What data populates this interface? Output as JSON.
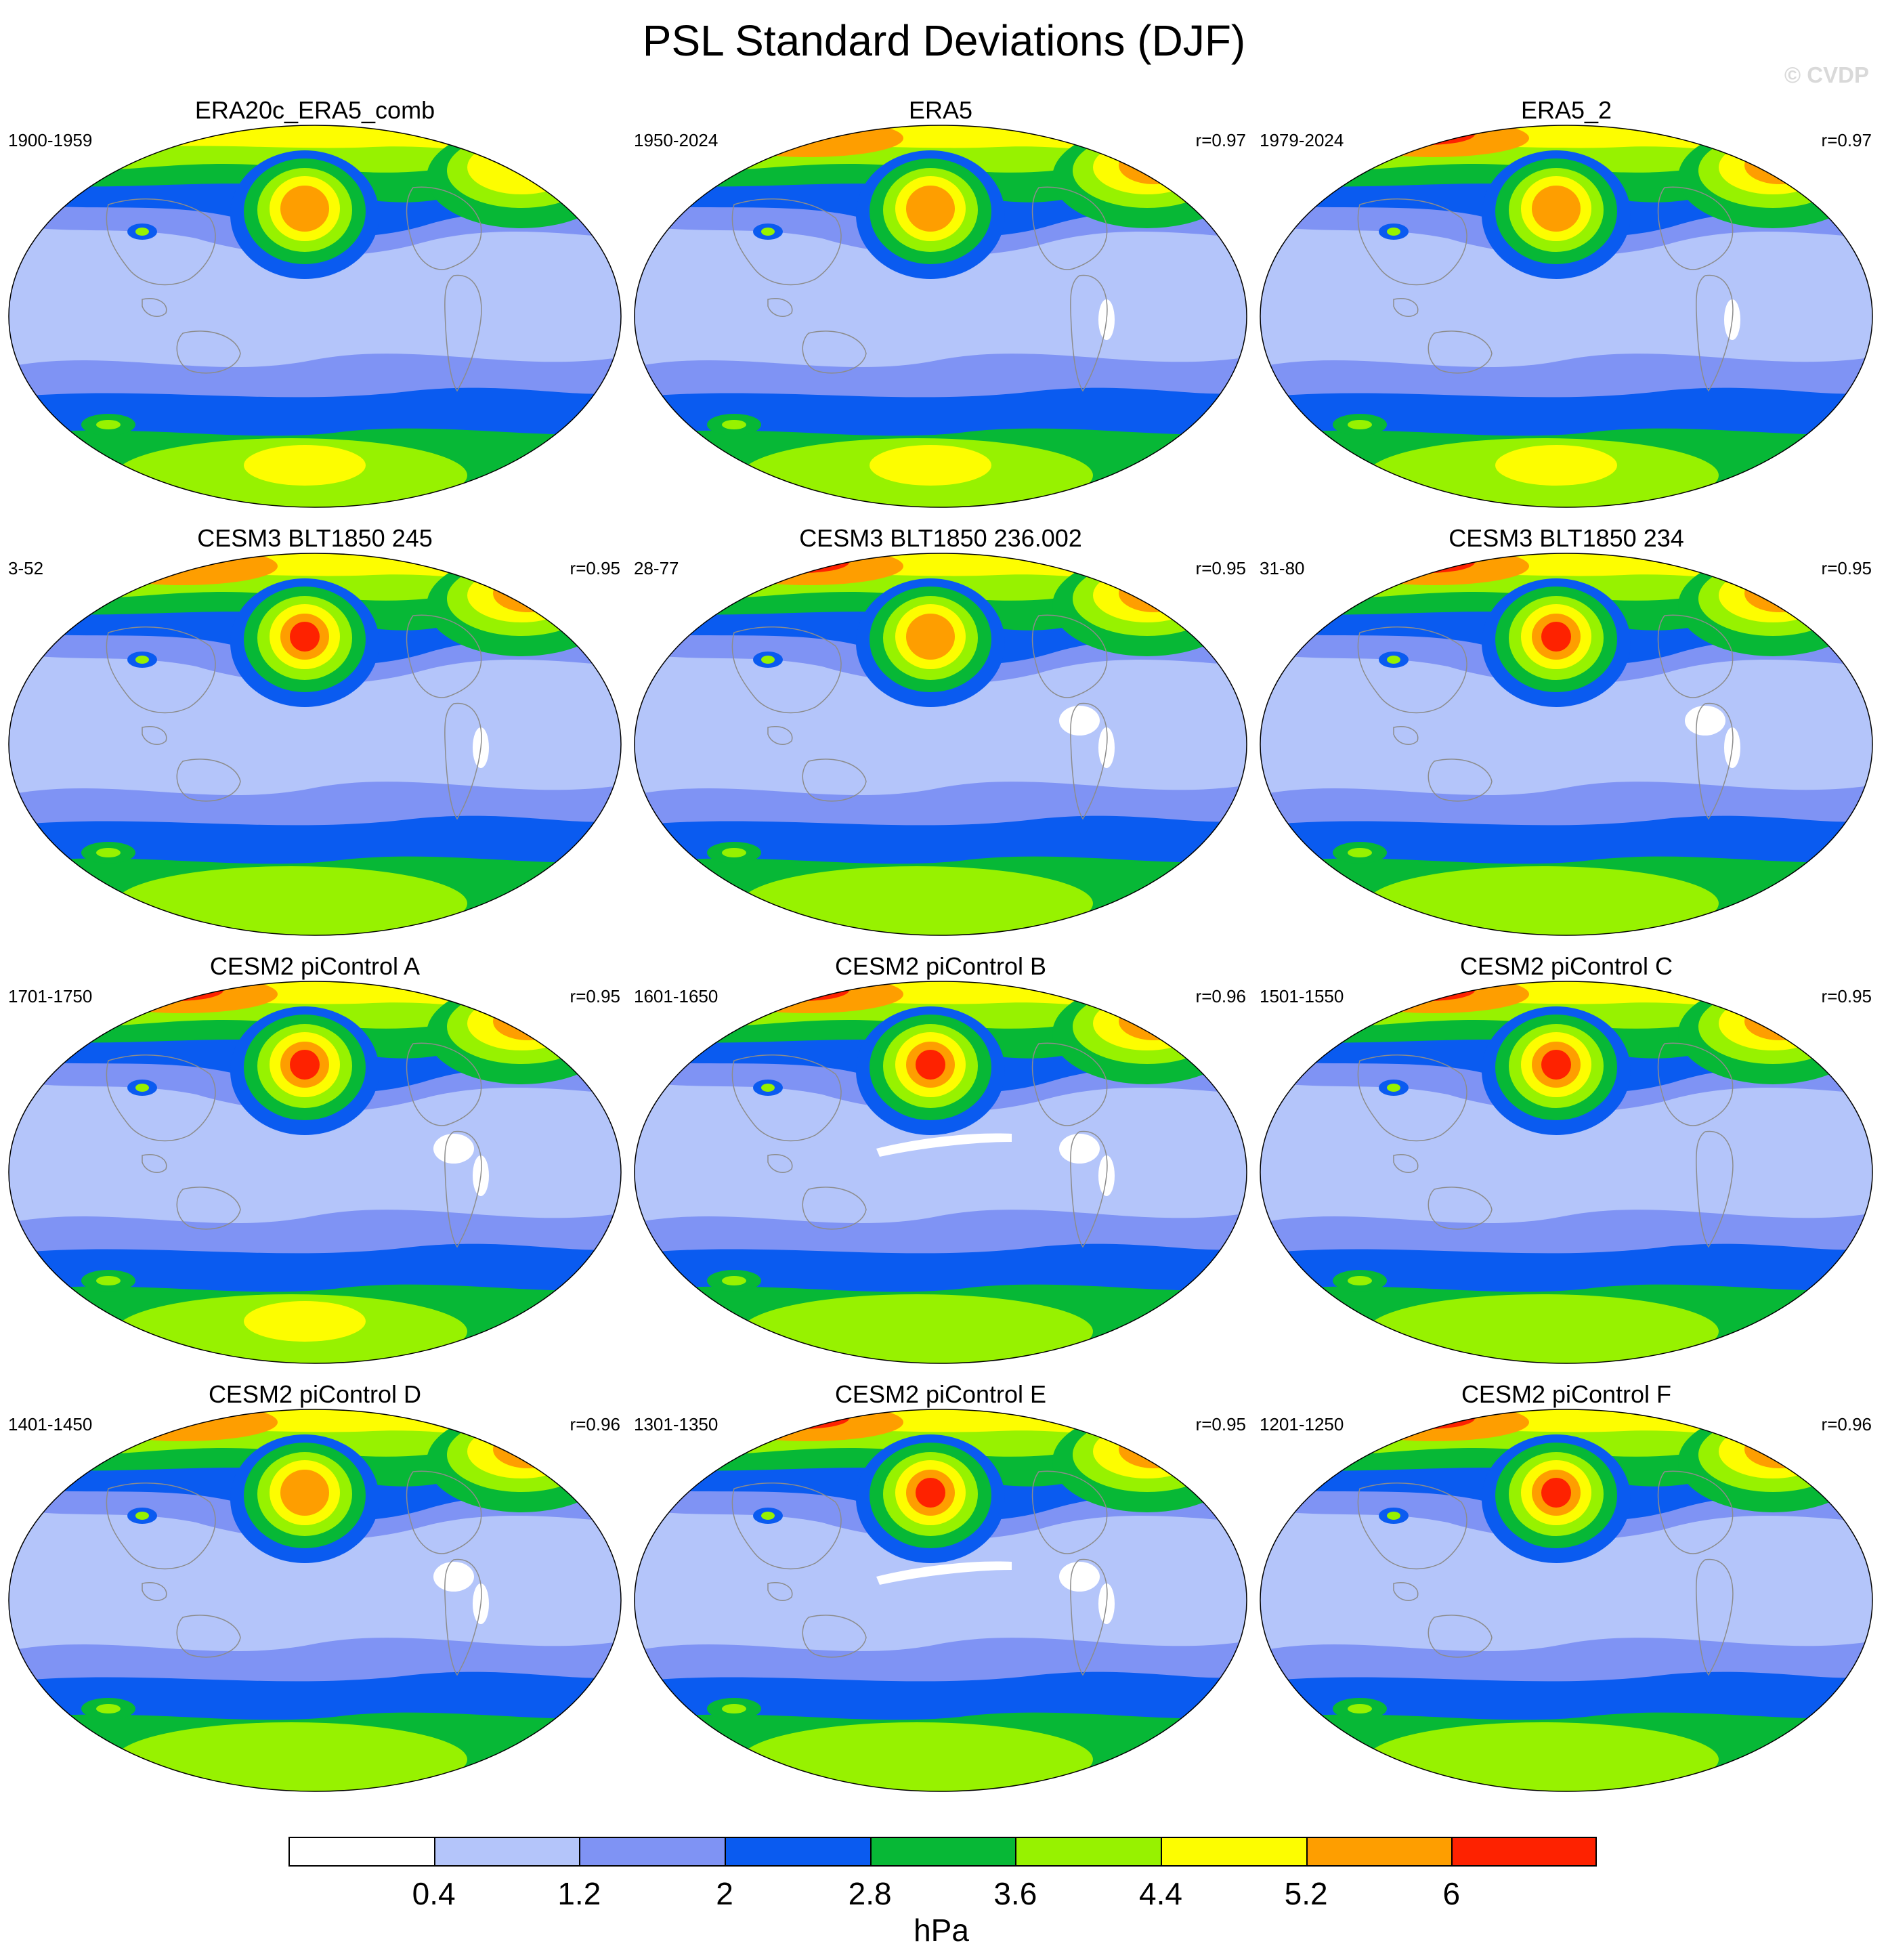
{
  "title": "PSL Standard Deviations (DJF)",
  "watermark": "© CVDP",
  "colorbar": {
    "units": "hPa",
    "levels": [
      "0.4",
      "1.2",
      "2",
      "2.8",
      "3.6",
      "4.4",
      "5.2",
      "6"
    ],
    "colors": [
      "#ffffff",
      "#b4c5fa",
      "#7f93f4",
      "#0a5bf0",
      "#07b836",
      "#97f200",
      "#fdfd00",
      "#fe9e00",
      "#fe2200"
    ]
  },
  "panels": [
    {
      "title": "ERA20c_ERA5_comb",
      "years": "1900-1959",
      "r": ""
    },
    {
      "title": "ERA5",
      "years": "1950-2024",
      "r": "r=0.97"
    },
    {
      "title": "ERA5_2",
      "years": "1979-2024",
      "r": "r=0.97"
    },
    {
      "title": "CESM3 BLT1850 245",
      "years": "3-52",
      "r": "r=0.95"
    },
    {
      "title": "CESM3 BLT1850 236.002",
      "years": "28-77",
      "r": "r=0.95"
    },
    {
      "title": "CESM3 BLT1850 234",
      "years": "31-80",
      "r": "r=0.95"
    },
    {
      "title": "CESM2 piControl A",
      "years": "1701-1750",
      "r": "r=0.95"
    },
    {
      "title": "CESM2 piControl B",
      "years": "1601-1650",
      "r": "r=0.96"
    },
    {
      "title": "CESM2 piControl C",
      "years": "1501-1550",
      "r": "r=0.95"
    },
    {
      "title": "CESM2 piControl D",
      "years": "1401-1450",
      "r": "r=0.96"
    },
    {
      "title": "CESM2 piControl E",
      "years": "1301-1350",
      "r": "r=0.95"
    },
    {
      "title": "CESM2 piControl F",
      "years": "1201-1250",
      "r": "r=0.96"
    }
  ]
}
